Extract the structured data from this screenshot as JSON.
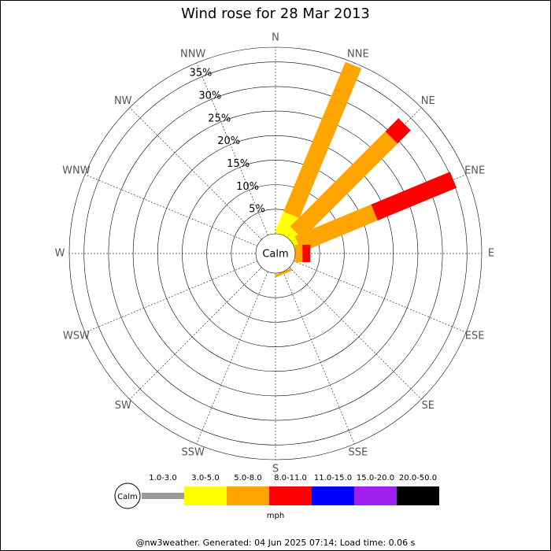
{
  "chart_data": {
    "type": "windrose",
    "title": "Wind rose for 28 Mar 2013",
    "directions": [
      "N",
      "NNE",
      "NE",
      "ENE",
      "E",
      "ESE",
      "SE",
      "SSE",
      "S",
      "SSW",
      "SW",
      "WSW",
      "W",
      "WNW",
      "NW",
      "NNW"
    ],
    "calm_label": "Calm",
    "unit": "mph",
    "series": [
      {
        "name": "1.0-3.0",
        "color": "#999999",
        "values": [
          0,
          0,
          0,
          0,
          0,
          0,
          0,
          0,
          0,
          0,
          0,
          0,
          0,
          0,
          0,
          0
        ]
      },
      {
        "name": "3.0-5.0",
        "color": "#ffff00",
        "values": [
          0,
          4.5,
          2,
          1,
          0,
          0,
          0,
          0,
          0,
          0,
          0,
          0,
          0,
          0,
          0,
          0
        ]
      },
      {
        "name": "5.0-8.0",
        "color": "#ffa500",
        "values": [
          0,
          33,
          27.4,
          16.8,
          1.5,
          0,
          0,
          0.5,
          0,
          0,
          0,
          0,
          0,
          0,
          0,
          0
        ]
      },
      {
        "name": "8.0-11.0",
        "color": "#ff0000",
        "values": [
          0,
          0,
          3.8,
          17.4,
          1.6,
          0,
          0,
          0,
          0,
          0,
          0,
          0,
          0,
          0,
          0,
          0
        ]
      },
      {
        "name": "11.0-15.0",
        "color": "#0000ff",
        "values": [
          0,
          0,
          0,
          0,
          0,
          0,
          0,
          0,
          0,
          0,
          0,
          0,
          0,
          0,
          0,
          0
        ]
      },
      {
        "name": "15.0-20.0",
        "color": "#a020f0",
        "values": [
          0,
          0,
          0,
          0,
          0,
          0,
          0,
          0,
          0,
          0,
          0,
          0,
          0,
          0,
          0,
          0
        ]
      },
      {
        "name": "20.0-50.0",
        "color": "#000000",
        "values": [
          0,
          0,
          0,
          0,
          0,
          0,
          0,
          0,
          0,
          0,
          0,
          0,
          0,
          0,
          0,
          0
        ]
      }
    ],
    "rlim": [
      0,
      38
    ],
    "rticks": [
      {
        "value": 5,
        "label": "5%"
      },
      {
        "value": 10,
        "label": "10%"
      },
      {
        "value": 15,
        "label": "15%"
      },
      {
        "value": 20,
        "label": "20%"
      },
      {
        "value": 25,
        "label": "25%"
      },
      {
        "value": 30,
        "label": "30%"
      },
      {
        "value": 35,
        "label": "35%"
      }
    ],
    "footer": "@nw3weather. Generated: 04 Jun 2025 07:14; Load time: 0.06 s"
  }
}
